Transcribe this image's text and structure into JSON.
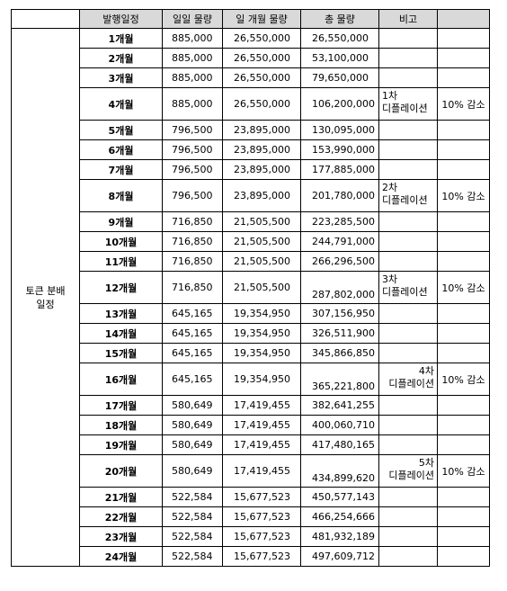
{
  "header": {
    "col_label": "",
    "col_month": "발행일정",
    "col_daily": "일일 물량",
    "col_monthly": "일 개월 물량",
    "col_total": "총 물량",
    "col_note": "비고",
    "col_extra": ""
  },
  "section_label": "토큰 분배\n일정",
  "rows": [
    {
      "month": "1개월",
      "daily": "885,000",
      "monthly": "26,550,000",
      "total": "26,550,000",
      "note": "",
      "reduce": ""
    },
    {
      "month": "2개월",
      "daily": "885,000",
      "monthly": "26,550,000",
      "total": "53,100,000",
      "note": "",
      "reduce": ""
    },
    {
      "month": "3개월",
      "daily": "885,000",
      "monthly": "26,550,000",
      "total": "79,650,000",
      "note": "",
      "reduce": ""
    },
    {
      "month": "4개월",
      "daily": "885,000",
      "monthly": "26,550,000",
      "total": "106,200,000",
      "note": "1차\n디플레이션",
      "reduce": "10% 감소"
    },
    {
      "month": "5개월",
      "daily": "796,500",
      "monthly": "23,895,000",
      "total": "130,095,000",
      "note": "",
      "reduce": ""
    },
    {
      "month": "6개월",
      "daily": "796,500",
      "monthly": "23,895,000",
      "total": "153,990,000",
      "note": "",
      "reduce": ""
    },
    {
      "month": "7개월",
      "daily": "796,500",
      "monthly": "23,895,000",
      "total": "177,885,000",
      "note": "",
      "reduce": ""
    },
    {
      "month": "8개월",
      "daily": "796,500",
      "monthly": "23,895,000",
      "total": "201,780,000",
      "note": "2차\n디플레이션",
      "reduce": "10% 감소"
    },
    {
      "month": "9개월",
      "daily": "716,850",
      "monthly": "21,505,500",
      "total": "223,285,500",
      "note": "",
      "reduce": ""
    },
    {
      "month": "10개월",
      "daily": "716,850",
      "monthly": "21,505,500",
      "total": "244,791,000",
      "note": "",
      "reduce": ""
    },
    {
      "month": "11개월",
      "daily": "716,850",
      "monthly": "21,505,500",
      "total": "266,296,500",
      "note": "",
      "reduce": ""
    },
    {
      "month": "12개월",
      "daily": "716,850",
      "monthly": "21,505,500",
      "total": "287,802,000",
      "note": "3차\n디플레이션",
      "reduce": "10% 감소"
    },
    {
      "month": "13개월",
      "daily": "645,165",
      "monthly": "19,354,950",
      "total": "307,156,950",
      "note": "",
      "reduce": ""
    },
    {
      "month": "14개월",
      "daily": "645,165",
      "monthly": "19,354,950",
      "total": "326,511,900",
      "note": "",
      "reduce": ""
    },
    {
      "month": "15개월",
      "daily": "645,165",
      "monthly": "19,354,950",
      "total": "345,866,850",
      "note": "",
      "reduce": ""
    },
    {
      "month": "16개월",
      "daily": "645,165",
      "monthly": "19,354,950",
      "total": "365,221,800",
      "note": "4차\n디플레이션",
      "reduce": "10% 감소"
    },
    {
      "month": "17개월",
      "daily": "580,649",
      "monthly": "17,419,455",
      "total": "382,641,255",
      "note": "",
      "reduce": ""
    },
    {
      "month": "18개월",
      "daily": "580,649",
      "monthly": "17,419,455",
      "total": "400,060,710",
      "note": "",
      "reduce": ""
    },
    {
      "month": "19개월",
      "daily": "580,649",
      "monthly": "17,419,455",
      "total": "417,480,165",
      "note": "",
      "reduce": ""
    },
    {
      "month": "20개월",
      "daily": "580,649",
      "monthly": "17,419,455",
      "total": "434,899,620",
      "note": "5차\n디플레이션",
      "reduce": "10% 감소"
    },
    {
      "month": "21개월",
      "daily": "522,584",
      "monthly": "15,677,523",
      "total": "450,577,143",
      "note": "",
      "reduce": ""
    },
    {
      "month": "22개월",
      "daily": "522,584",
      "monthly": "15,677,523",
      "total": "466,254,666",
      "note": "",
      "reduce": ""
    },
    {
      "month": "23개월",
      "daily": "522,584",
      "monthly": "15,677,523",
      "total": "481,932,189",
      "note": "",
      "reduce": ""
    },
    {
      "month": "24개월",
      "daily": "522,584",
      "monthly": "15,677,523",
      "total": "497,609,712",
      "note": "",
      "reduce": ""
    }
  ]
}
